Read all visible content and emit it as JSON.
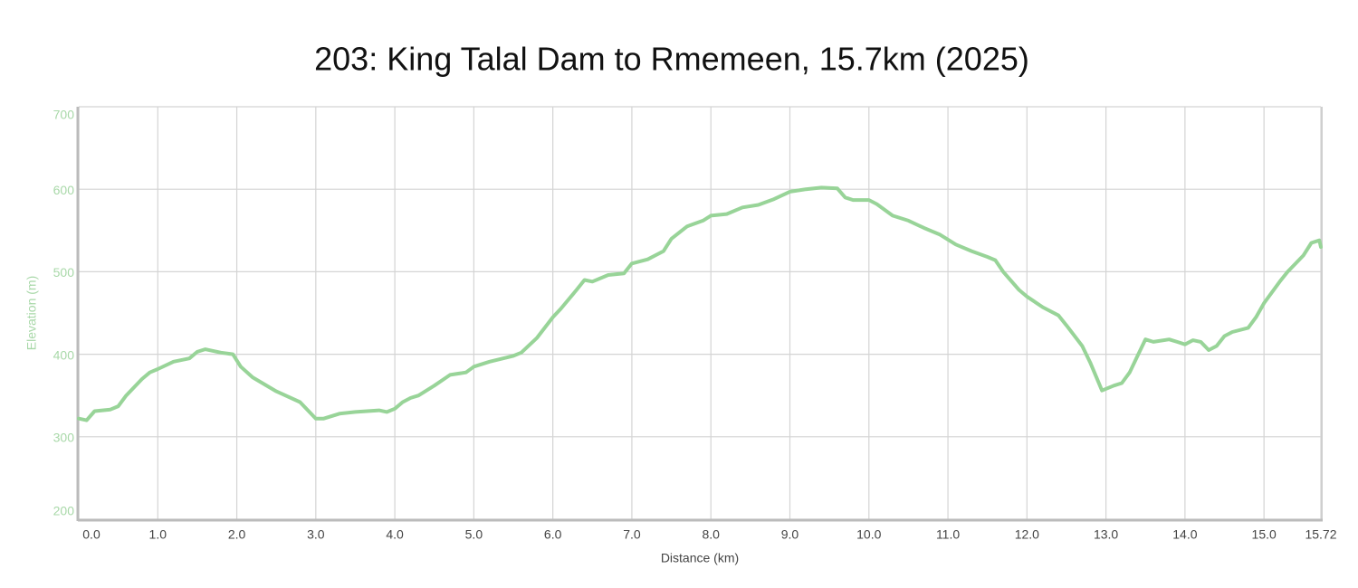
{
  "chart_data": {
    "type": "line",
    "title": "203: King Talal Dam to Rmemeen, 15.7km (2025)",
    "x_label": "Distance (km)",
    "y_label": "Elevation (m)",
    "xlim": [
      0,
      15.72
    ],
    "ylim": [
      200,
      700
    ],
    "xticks": [
      {
        "value": 0,
        "label": "0.0"
      },
      {
        "value": 1,
        "label": "1.0"
      },
      {
        "value": 2,
        "label": "2.0"
      },
      {
        "value": 3,
        "label": "3.0"
      },
      {
        "value": 4,
        "label": "4.0"
      },
      {
        "value": 5,
        "label": "5.0"
      },
      {
        "value": 6,
        "label": "6.0"
      },
      {
        "value": 7,
        "label": "7.0"
      },
      {
        "value": 8,
        "label": "8.0"
      },
      {
        "value": 9,
        "label": "9.0"
      },
      {
        "value": 10,
        "label": "10.0"
      },
      {
        "value": 11,
        "label": "11.0"
      },
      {
        "value": 12,
        "label": "12.0"
      },
      {
        "value": 13,
        "label": "13.0"
      },
      {
        "value": 14,
        "label": "14.0"
      },
      {
        "value": 15,
        "label": "15.0"
      },
      15.72
    ],
    "yticks": [
      200,
      300,
      400,
      500,
      600,
      700
    ],
    "grid": true,
    "x": [
      0,
      0.1,
      0.2,
      0.4,
      0.5,
      0.6,
      0.8,
      0.9,
      1.0,
      1.2,
      1.4,
      1.5,
      1.6,
      1.8,
      1.95,
      2.05,
      2.2,
      2.5,
      2.8,
      2.9,
      3.0,
      3.1,
      3.3,
      3.5,
      3.8,
      3.9,
      4.0,
      4.1,
      4.2,
      4.3,
      4.5,
      4.7,
      4.9,
      5.0,
      5.2,
      5.5,
      5.6,
      5.8,
      6.0,
      6.1,
      6.3,
      6.4,
      6.5,
      6.7,
      6.9,
      7.0,
      7.2,
      7.4,
      7.5,
      7.7,
      7.9,
      8.0,
      8.2,
      8.4,
      8.6,
      8.8,
      9.0,
      9.2,
      9.4,
      9.6,
      9.7,
      9.8,
      10.0,
      10.1,
      10.3,
      10.5,
      10.7,
      10.9,
      11.1,
      11.3,
      11.5,
      11.6,
      11.7,
      11.9,
      12.0,
      12.2,
      12.4,
      12.5,
      12.7,
      12.8,
      12.95,
      13.1,
      13.2,
      13.3,
      13.4,
      13.5,
      13.6,
      13.8,
      13.9,
      14.0,
      14.1,
      14.2,
      14.3,
      14.4,
      14.5,
      14.6,
      14.8,
      14.9,
      15.0,
      15.2,
      15.3,
      15.5,
      15.6,
      15.7,
      15.72
    ],
    "series": [
      {
        "name": "Elevation",
        "color": "#98d498",
        "values": [
          322,
          320,
          331,
          333,
          337,
          350,
          370,
          378,
          382,
          391,
          395,
          403,
          406,
          402,
          400,
          385,
          372,
          355,
          342,
          332,
          322,
          322,
          328,
          330,
          332,
          330,
          334,
          342,
          347,
          350,
          362,
          375,
          378,
          385,
          391,
          398,
          402,
          420,
          445,
          455,
          478,
          490,
          488,
          496,
          498,
          510,
          515,
          525,
          540,
          555,
          562,
          568,
          570,
          578,
          581,
          588,
          597,
          600,
          602,
          601,
          590,
          587,
          587,
          582,
          568,
          562,
          553,
          545,
          533,
          525,
          518,
          514,
          500,
          478,
          470,
          457,
          447,
          435,
          410,
          390,
          356,
          362,
          365,
          378,
          398,
          418,
          415,
          418,
          415,
          412,
          417,
          415,
          405,
          410,
          422,
          427,
          432,
          445,
          462,
          488,
          500,
          520,
          535,
          538,
          530
        ]
      }
    ]
  }
}
